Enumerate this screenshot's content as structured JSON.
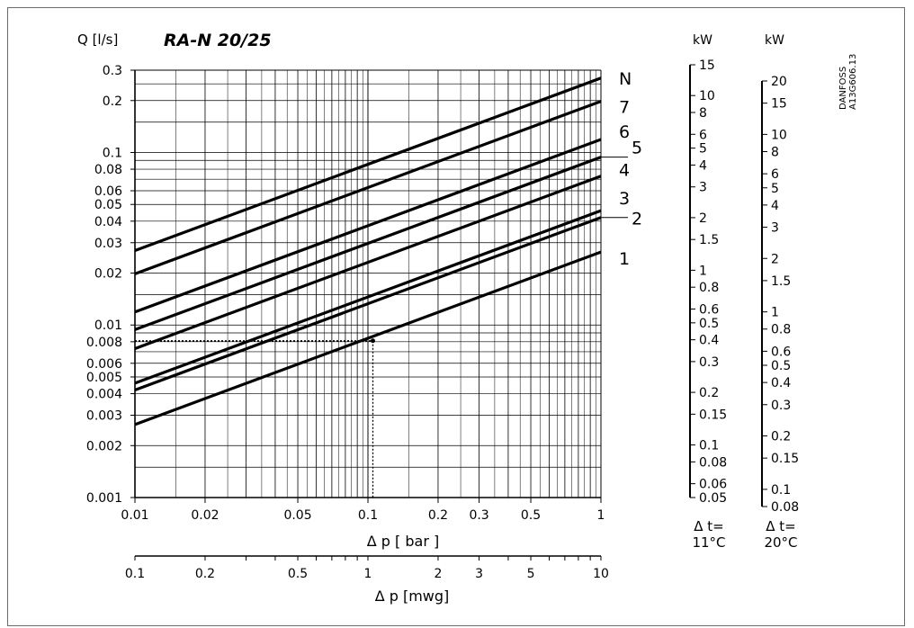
{
  "chart_data": {
    "type": "line",
    "title": "RA-N 20/25",
    "ylabel": "Q [l/s]",
    "xlabel": "Δ p [ bar ]",
    "xlabel_secondary": "Δ p [mwg]",
    "x_scale": "log",
    "y_scale": "log",
    "xlim": [
      0.01,
      1
    ],
    "ylim": [
      0.001,
      0.3
    ],
    "x_secondary_lim": [
      0.1,
      10
    ],
    "grid": true,
    "x_ticks": [
      "0.01",
      "0.02",
      "0.05",
      "0.1",
      "0.2",
      "0.3",
      "0.5",
      "1"
    ],
    "x_secondary_ticks": [
      "0.1",
      "0.2",
      "0.5",
      "1",
      "2",
      "3",
      "5",
      "10"
    ],
    "y_ticks": [
      "0.001",
      "0.002",
      "0.003",
      "0.004",
      "0.005",
      "0.006",
      "0.008",
      "0.01",
      "0.02",
      "0.03",
      "0.04",
      "0.05",
      "0.06",
      "0.08",
      "0.1",
      "0.2",
      "0.3"
    ],
    "series": [
      {
        "name": "N",
        "x": [
          0.01,
          1
        ],
        "y": [
          0.027,
          0.27
        ]
      },
      {
        "name": "7",
        "x": [
          0.01,
          1
        ],
        "y": [
          0.0198,
          0.198
        ]
      },
      {
        "name": "6",
        "x": [
          0.01,
          1
        ],
        "y": [
          0.0119,
          0.119
        ]
      },
      {
        "name": "5",
        "x": [
          0.01,
          1
        ],
        "y": [
          0.0094,
          0.094
        ]
      },
      {
        "name": "4",
        "x": [
          0.01,
          1
        ],
        "y": [
          0.0073,
          0.073
        ]
      },
      {
        "name": "3",
        "x": [
          0.01,
          1
        ],
        "y": [
          0.0046,
          0.046
        ]
      },
      {
        "name": "2",
        "x": [
          0.01,
          1
        ],
        "y": [
          0.0042,
          0.042
        ]
      },
      {
        "name": "1",
        "x": [
          0.01,
          1
        ],
        "y": [
          0.00265,
          0.0265
        ]
      }
    ],
    "annotation": {
      "x": 0.105,
      "y": 0.0081
    },
    "power_scales": [
      {
        "unit": "kW",
        "label": "Δ t=",
        "label2": "11°C",
        "ticks": [
          "15",
          "10",
          "8",
          "6",
          "5",
          "4",
          "3",
          "2",
          "1.5",
          "1",
          "0.8",
          "0.6",
          "0.5",
          "0.4",
          "0.3",
          "0.2",
          "0.15",
          "0.1",
          "0.08",
          "0.06",
          "0.05"
        ]
      },
      {
        "unit": "kW",
        "label": "Δ t=",
        "label2": "20°C",
        "ticks": [
          "20",
          "15",
          "10",
          "8",
          "6",
          "5",
          "4",
          "3",
          "2",
          "1.5",
          "1",
          "0.8",
          "0.6",
          "0.5",
          "0.4",
          "0.3",
          "0.2",
          "0.15",
          "0.1",
          "0.08"
        ]
      }
    ],
    "watermark": "DANFOSS A13G606.13"
  }
}
